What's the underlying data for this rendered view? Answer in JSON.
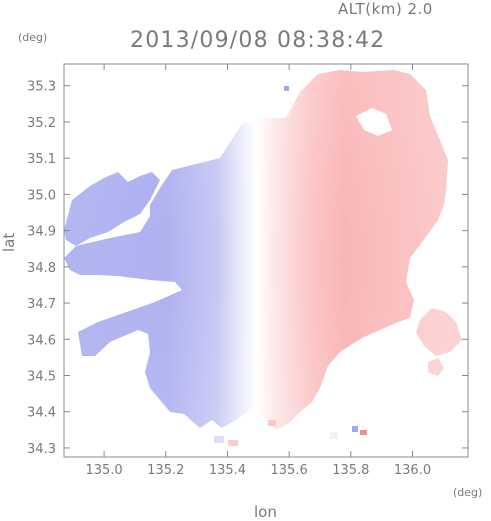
{
  "header": {
    "altitude_label": "ALT(km) 2.0",
    "datetime": "2013/09/08 08:38:42",
    "y_unit": "(deg)",
    "x_unit": "(deg)"
  },
  "chart_data": {
    "type": "heatmap",
    "title": "2013/09/08 08:38:42",
    "subtitle": "ALT(km) 2.0",
    "xlabel": "lon",
    "ylabel": "lat",
    "xlim": [
      134.87,
      136.18
    ],
    "ylim": [
      34.275,
      35.36
    ],
    "x_ticks": [
      135.0,
      135.2,
      135.4,
      135.6,
      135.8,
      136.0
    ],
    "x_tick_labels": [
      "135.0",
      "135.2",
      "135.4",
      "135.6",
      "135.8",
      "136.0"
    ],
    "y_ticks": [
      34.3,
      34.4,
      34.5,
      34.6,
      34.7,
      34.8,
      34.9,
      35.0,
      35.1,
      35.2,
      35.3
    ],
    "y_tick_labels": [
      "34.3",
      "34.4",
      "34.5",
      "34.6",
      "34.7",
      "34.8",
      "34.9",
      "35.0",
      "35.1",
      "35.2",
      "35.3"
    ],
    "grid": false,
    "radar_center": [
      135.52,
      34.82
    ],
    "colors": {
      "approaching": "#9a9ff0",
      "receding": "#f7a6a6",
      "neutral": "#ffffff"
    }
  }
}
